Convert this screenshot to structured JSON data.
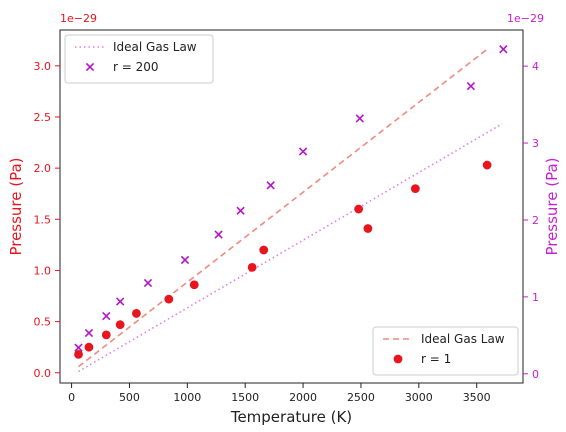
{
  "chart_data": {
    "type": "scatter",
    "xlabel": "Temperature (K)",
    "ylabel_left": "Pressure (Pa)",
    "ylabel_right": "Pressure (Pa)",
    "left_offset_text": "1e−29",
    "right_offset_text": "1e−29",
    "xlim": [
      -100,
      3900
    ],
    "ylim_left": [
      -0.1,
      3.35
    ],
    "ylim_right": [
      -0.12,
      4.47
    ],
    "x_ticks": [
      0,
      500,
      1000,
      1500,
      2000,
      2500,
      3000,
      3500
    ],
    "x_tick_labels": [
      "0",
      "500",
      "1000",
      "1500",
      "2000",
      "2500",
      "3000",
      "3500"
    ],
    "left_ticks": [
      0.0,
      0.5,
      1.0,
      1.5,
      2.0,
      2.5,
      3.0
    ],
    "left_tick_labels": [
      "0.0",
      "0.5",
      "1.0",
      "1.5",
      "2.0",
      "2.5",
      "3.0"
    ],
    "right_ticks": [
      0,
      1,
      2,
      3,
      4
    ],
    "right_tick_labels": [
      "0",
      "1",
      "2",
      "3",
      "4"
    ],
    "colors": {
      "left_axis": "#e8141e",
      "right_axis": "#c71fd1",
      "scatter_r1": "#e8141e",
      "scatter_r200": "#b515cc",
      "line_left": "#f08a80",
      "line_right": "#e27ee6"
    },
    "left_axis_series": [
      {
        "name": "Ideal Gas Law",
        "kind": "line",
        "style": "dashed",
        "x": [
          60,
          3600
        ],
        "y": [
          0.06,
          3.17
        ]
      },
      {
        "name": "r = 1",
        "kind": "scatter",
        "marker": "circle",
        "x": [
          60,
          150,
          300,
          420,
          560,
          840,
          1060,
          1560,
          1660,
          2480,
          2560,
          2970,
          3590
        ],
        "y": [
          0.18,
          0.25,
          0.37,
          0.47,
          0.58,
          0.72,
          0.86,
          1.03,
          1.2,
          1.6,
          1.41,
          1.8,
          2.03
        ]
      }
    ],
    "right_axis_series": [
      {
        "name": "Ideal Gas Law",
        "kind": "line",
        "style": "dotted",
        "x": [
          60,
          3720
        ],
        "y": [
          0.03,
          3.25
        ]
      },
      {
        "name": "r = 200",
        "kind": "scatter",
        "marker": "x",
        "x": [
          60,
          150,
          300,
          420,
          660,
          980,
          1270,
          1460,
          1720,
          2000,
          2490,
          3450,
          3730
        ],
        "y": [
          0.34,
          0.53,
          0.75,
          0.94,
          1.18,
          1.48,
          1.81,
          2.12,
          2.45,
          2.89,
          3.32,
          3.74,
          4.22
        ]
      }
    ],
    "legends": [
      {
        "placement": "top-left",
        "entries": [
          "Ideal Gas Law",
          "r = 200"
        ]
      },
      {
        "placement": "bottom-right",
        "entries": [
          "Ideal Gas Law",
          "r = 1"
        ]
      }
    ]
  }
}
